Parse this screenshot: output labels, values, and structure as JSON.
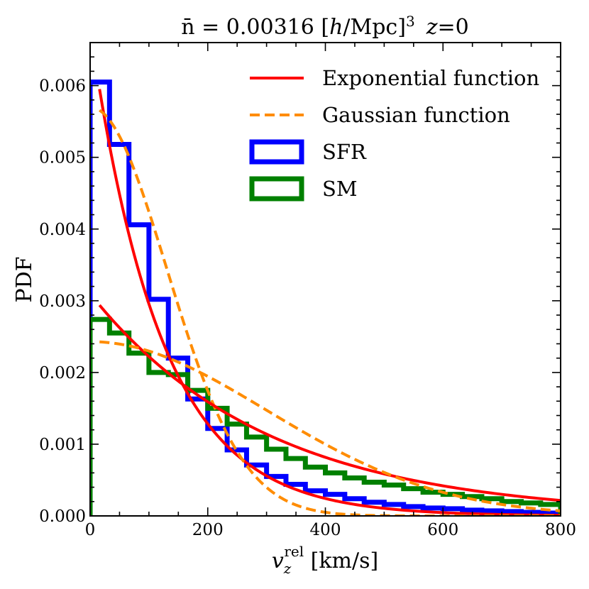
{
  "chart_data": {
    "type": "histogram",
    "title": {
      "prefix": "n̄ = 0.00316 [",
      "h": "h",
      "mid": "/Mpc]",
      "exp": "3",
      "z": "z",
      "suffix": "=0"
    },
    "xlabel": {
      "v": "v",
      "sub": "z",
      "sup": "rel",
      "unit": " [km/s]"
    },
    "ylabel": "PDF",
    "xlim": [
      0,
      800
    ],
    "ylim": [
      0,
      0.0066
    ],
    "x_ticks": [
      "0",
      "200",
      "400",
      "600",
      "800"
    ],
    "y_ticks": [
      "0.000",
      "0.001",
      "0.002",
      "0.003",
      "0.004",
      "0.005",
      "0.006"
    ],
    "bin_edges": [
      0,
      33,
      66,
      100,
      133,
      166,
      200,
      233,
      266,
      300,
      333,
      366,
      400,
      433,
      466,
      500,
      533,
      566,
      600,
      633,
      666,
      700,
      733,
      766,
      800
    ],
    "histograms": [
      {
        "name": "SFR",
        "color": "#0000ff",
        "values": [
          0.00605,
          0.00518,
          0.00406,
          0.00302,
          0.0022,
          0.00163,
          0.00122,
          0.00092,
          0.00071,
          0.00055,
          0.00044,
          0.00035,
          0.0003,
          0.00024,
          0.00019,
          0.00016,
          0.00013,
          0.00011,
          0.0001,
          8e-05,
          7e-05,
          6e-05,
          5e-05,
          4e-05
        ]
      },
      {
        "name": "SM",
        "color": "#008000",
        "values": [
          0.00274,
          0.00255,
          0.00227,
          0.002,
          0.00197,
          0.00175,
          0.0015,
          0.00128,
          0.0011,
          0.00093,
          0.0008,
          0.00068,
          0.0006,
          0.00053,
          0.00047,
          0.00043,
          0.00038,
          0.00033,
          0.0003,
          0.00027,
          0.00024,
          0.0002,
          0.00018,
          0.00016
        ]
      }
    ],
    "curves": [
      {
        "name": "Exponential function",
        "color": "#ff0000",
        "style": "solid",
        "family": "exponential",
        "amplitude": 0.0068,
        "scale": 120,
        "x_range": [
          16,
          800
        ]
      },
      {
        "name": "Gaussian function",
        "color": "#ff8c00",
        "style": "dashed",
        "family": "gaussian",
        "amplitude": 0.0057,
        "sigma": 130,
        "x_range": [
          16,
          800
        ]
      },
      {
        "name": "Exponential function",
        "color": "#ff0000",
        "style": "solid",
        "family": "exponential",
        "amplitude": 0.0031,
        "scale": 300,
        "x_range": [
          16,
          800
        ]
      },
      {
        "name": "Gaussian function",
        "color": "#ff8c00",
        "style": "dashed",
        "family": "gaussian",
        "amplitude": 0.00243,
        "sigma": 300,
        "x_range": [
          16,
          800
        ]
      }
    ],
    "legend": {
      "position": "top-right",
      "entries": [
        {
          "label": "Exponential function",
          "kind": "line",
          "color": "#ff0000",
          "style": "solid"
        },
        {
          "label": "Gaussian function",
          "kind": "line",
          "color": "#ff8c00",
          "style": "dashed"
        },
        {
          "label": "SFR",
          "kind": "patch",
          "color": "#0000ff"
        },
        {
          "label": "SM",
          "kind": "patch",
          "color": "#008000"
        }
      ]
    }
  }
}
